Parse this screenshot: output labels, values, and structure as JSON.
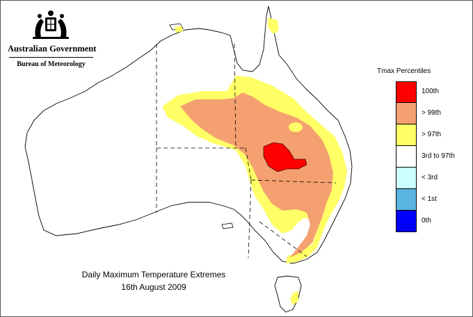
{
  "branding": {
    "government": "Australian Government",
    "bureau": "Bureau of Meteorology",
    "logo_icon": "commonwealth-coat-of-arms"
  },
  "legend": {
    "title": "Tmax Percentiles",
    "items": [
      {
        "label": "100th",
        "color": "#ff0000"
      },
      {
        "label": "> 99th",
        "color": "#f4a070"
      },
      {
        "label": "> 97th",
        "color": "#ffff66"
      },
      {
        "label": "3rd to 97th",
        "color": "#ffffff"
      },
      {
        "label": "< 3rd",
        "color": "#ccffff"
      },
      {
        "label": "< 1st",
        "color": "#5ab4e0"
      },
      {
        "label": "0th",
        "color": "#0000ff"
      }
    ]
  },
  "caption": {
    "title": "Daily Maximum Temperature Extremes",
    "date": "16th August 2009"
  },
  "map": {
    "region": "Australia",
    "boundary_color": "#000000",
    "state_border_style": "dashed"
  }
}
